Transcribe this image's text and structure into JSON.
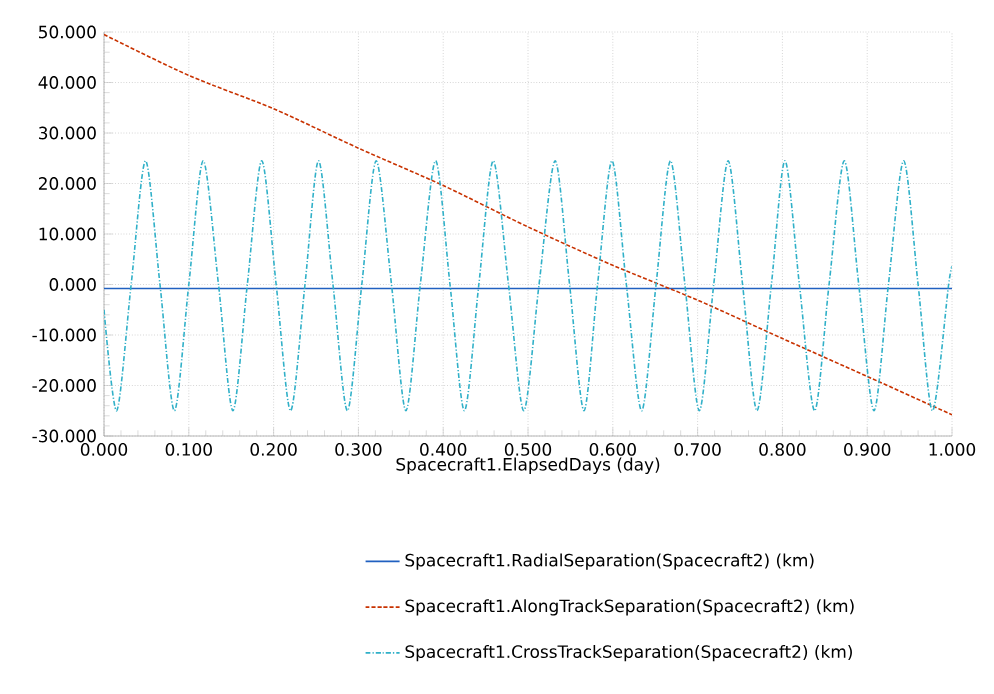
{
  "chart_data": {
    "type": "line",
    "xlabel": "Spacecraft1.ElapsedDays (day)",
    "xlim": [
      0,
      1
    ],
    "ylim": [
      -30,
      50
    ],
    "xticks": [
      {
        "value": 0,
        "label": "0.000"
      },
      {
        "value": 0.1,
        "label": "0.100"
      },
      {
        "value": 0.2,
        "label": "0.200"
      },
      {
        "value": 0.3,
        "label": "0.300"
      },
      {
        "value": 0.4,
        "label": "0.400"
      },
      {
        "value": 0.5,
        "label": "0.500"
      },
      {
        "value": 0.6,
        "label": "0.600"
      },
      {
        "value": 0.7,
        "label": "0.700"
      },
      {
        "value": 0.8,
        "label": "0.800"
      },
      {
        "value": 0.9,
        "label": "0.900"
      },
      {
        "value": 1,
        "label": "1.000"
      }
    ],
    "yticks": [
      {
        "value": -30,
        "label": "-30.000"
      },
      {
        "value": -20,
        "label": "-20.000"
      },
      {
        "value": -10,
        "label": "-10.000"
      },
      {
        "value": 0,
        "label": "0.000"
      },
      {
        "value": 10,
        "label": "10.000"
      },
      {
        "value": 20,
        "label": "20.000"
      },
      {
        "value": 30,
        "label": "30.000"
      },
      {
        "value": 40,
        "label": "40.000"
      },
      {
        "value": 50,
        "label": "50.000"
      }
    ],
    "grid": true,
    "legend": "bottom",
    "marker": "none",
    "series": [
      {
        "name": "Spacecraft1.RadialSeparation(Spacecraft2) (km)",
        "color": "#2060c0",
        "line_style": "solid",
        "x": [
          0,
          0.5,
          1
        ],
        "values": [
          -0.8,
          -0.8,
          -0.8
        ]
      },
      {
        "name": "Spacecraft1.AlongTrackSeparation(Spacecraft2) (km)",
        "color": "#c83200",
        "line_style": "dashed",
        "x": [
          0,
          0.1,
          0.2,
          0.3,
          0.4,
          0.5,
          0.6,
          0.7,
          0.8,
          0.9,
          1
        ],
        "values": [
          49.5,
          41.4,
          34.8,
          27.0,
          19.6,
          11.4,
          3.8,
          -3.1,
          -10.7,
          -18.2,
          -25.8
        ]
      },
      {
        "name": "Spacecraft1.CrossTrackSeparation(Spacecraft2) (km)",
        "color": "#30b0c8",
        "line_style": "dashdot",
        "x": [
          0,
          0.015,
          0.032,
          0.049,
          0.066,
          0.083,
          0.1,
          0.117,
          0.135,
          0.152,
          0.169,
          0.186,
          0.203,
          0.22,
          0.237,
          0.253,
          0.27,
          0.287,
          0.304,
          0.321,
          0.339,
          0.356,
          0.373,
          0.391,
          0.408,
          0.425,
          0.442,
          0.459,
          0.477,
          0.495,
          0.513,
          0.532,
          0.549,
          0.566,
          0.582,
          0.599,
          0.616,
          0.634,
          0.651,
          0.668,
          0.685,
          0.702,
          0.719,
          0.736,
          0.753,
          0.77,
          0.787,
          0.803,
          0.82,
          0.838,
          0.855,
          0.873,
          0.89,
          0.908,
          0.925,
          0.943,
          0.96,
          0.977,
          0.996,
          1
        ],
        "values": [
          -5,
          -25,
          0,
          24.5,
          0,
          -25,
          0,
          24.5,
          0,
          -25,
          0,
          24.5,
          0,
          -25,
          0,
          24.5,
          0,
          -25,
          0,
          24.5,
          0,
          -25,
          0,
          24.5,
          0,
          -25,
          0,
          24.5,
          0,
          -25,
          0,
          24.5,
          0,
          -25,
          0,
          24.5,
          0,
          -25,
          0,
          24.5,
          0,
          -25,
          0,
          24.5,
          0,
          -25,
          0,
          24.5,
          0,
          -25,
          0,
          24.5,
          0,
          -25,
          0,
          24.5,
          0,
          -25,
          0,
          3.5
        ]
      }
    ]
  }
}
